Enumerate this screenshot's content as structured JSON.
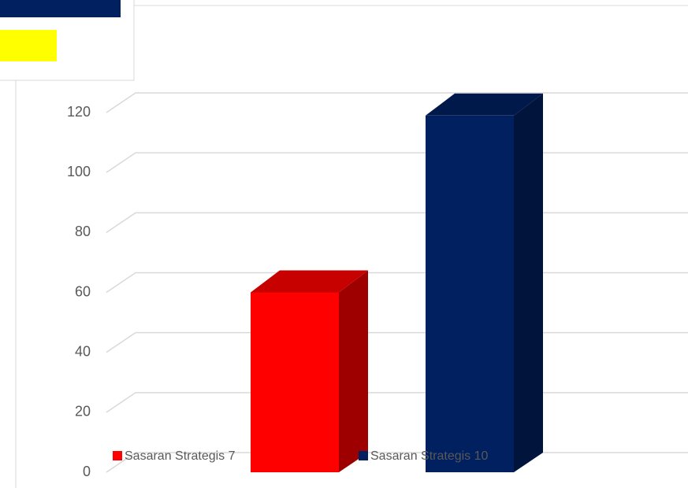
{
  "chart_data": {
    "type": "bar3d",
    "categories": [
      null
    ],
    "series": [
      {
        "name": "Sasaran Strategis 7",
        "color": "#ff0000",
        "values": [
          60
        ]
      },
      {
        "name": "Sasaran Strategis 10",
        "color": "#002060",
        "values": [
          119
        ]
      }
    ],
    "ylim": [
      0,
      120
    ],
    "yticks": [
      0,
      20,
      40,
      60,
      80,
      100,
      120
    ],
    "grid": true,
    "legend": "bottom"
  }
}
